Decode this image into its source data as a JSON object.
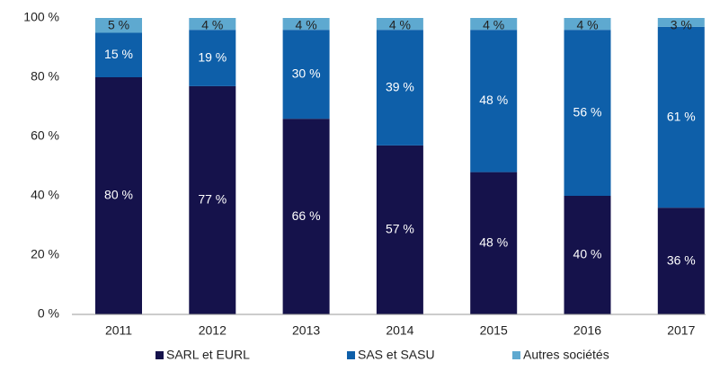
{
  "chart_data": {
    "type": "stacked_bar",
    "categories": [
      "2011",
      "2012",
      "2013",
      "2014",
      "2015",
      "2016",
      "2017"
    ],
    "series": [
      {
        "name": "SARL et EURL",
        "color": "#15124b",
        "values": [
          80,
          77,
          66,
          57,
          48,
          40,
          36
        ],
        "value_labels": [
          "80 %",
          "77 %",
          "66 %",
          "57 %",
          "48 %",
          "40 %",
          "36 %"
        ]
      },
      {
        "name": "SAS et SASU",
        "color": "#0e5fa9",
        "values": [
          15,
          19,
          30,
          39,
          48,
          56,
          61
        ],
        "value_labels": [
          "15 %",
          "19 %",
          "30 %",
          "39 %",
          "48 %",
          "56 %",
          "61 %"
        ]
      },
      {
        "name": "Autres sociétés",
        "color": "#5ea9d0",
        "values": [
          5,
          4,
          4,
          4,
          4,
          4,
          3
        ],
        "value_labels": [
          "5 %",
          "4 %",
          "4 %",
          "4 %",
          "4 %",
          "4 %",
          "3 %"
        ]
      }
    ],
    "ylim": [
      0,
      100
    ],
    "yticks": [
      {
        "value": 0,
        "label": "0 %"
      },
      {
        "value": 20,
        "label": "20 %"
      },
      {
        "value": 40,
        "label": "40 %"
      },
      {
        "value": 60,
        "label": "60 %"
      },
      {
        "value": 80,
        "label": "80 %"
      },
      {
        "value": 100,
        "label": "100 %"
      }
    ],
    "legend": "bottom"
  }
}
